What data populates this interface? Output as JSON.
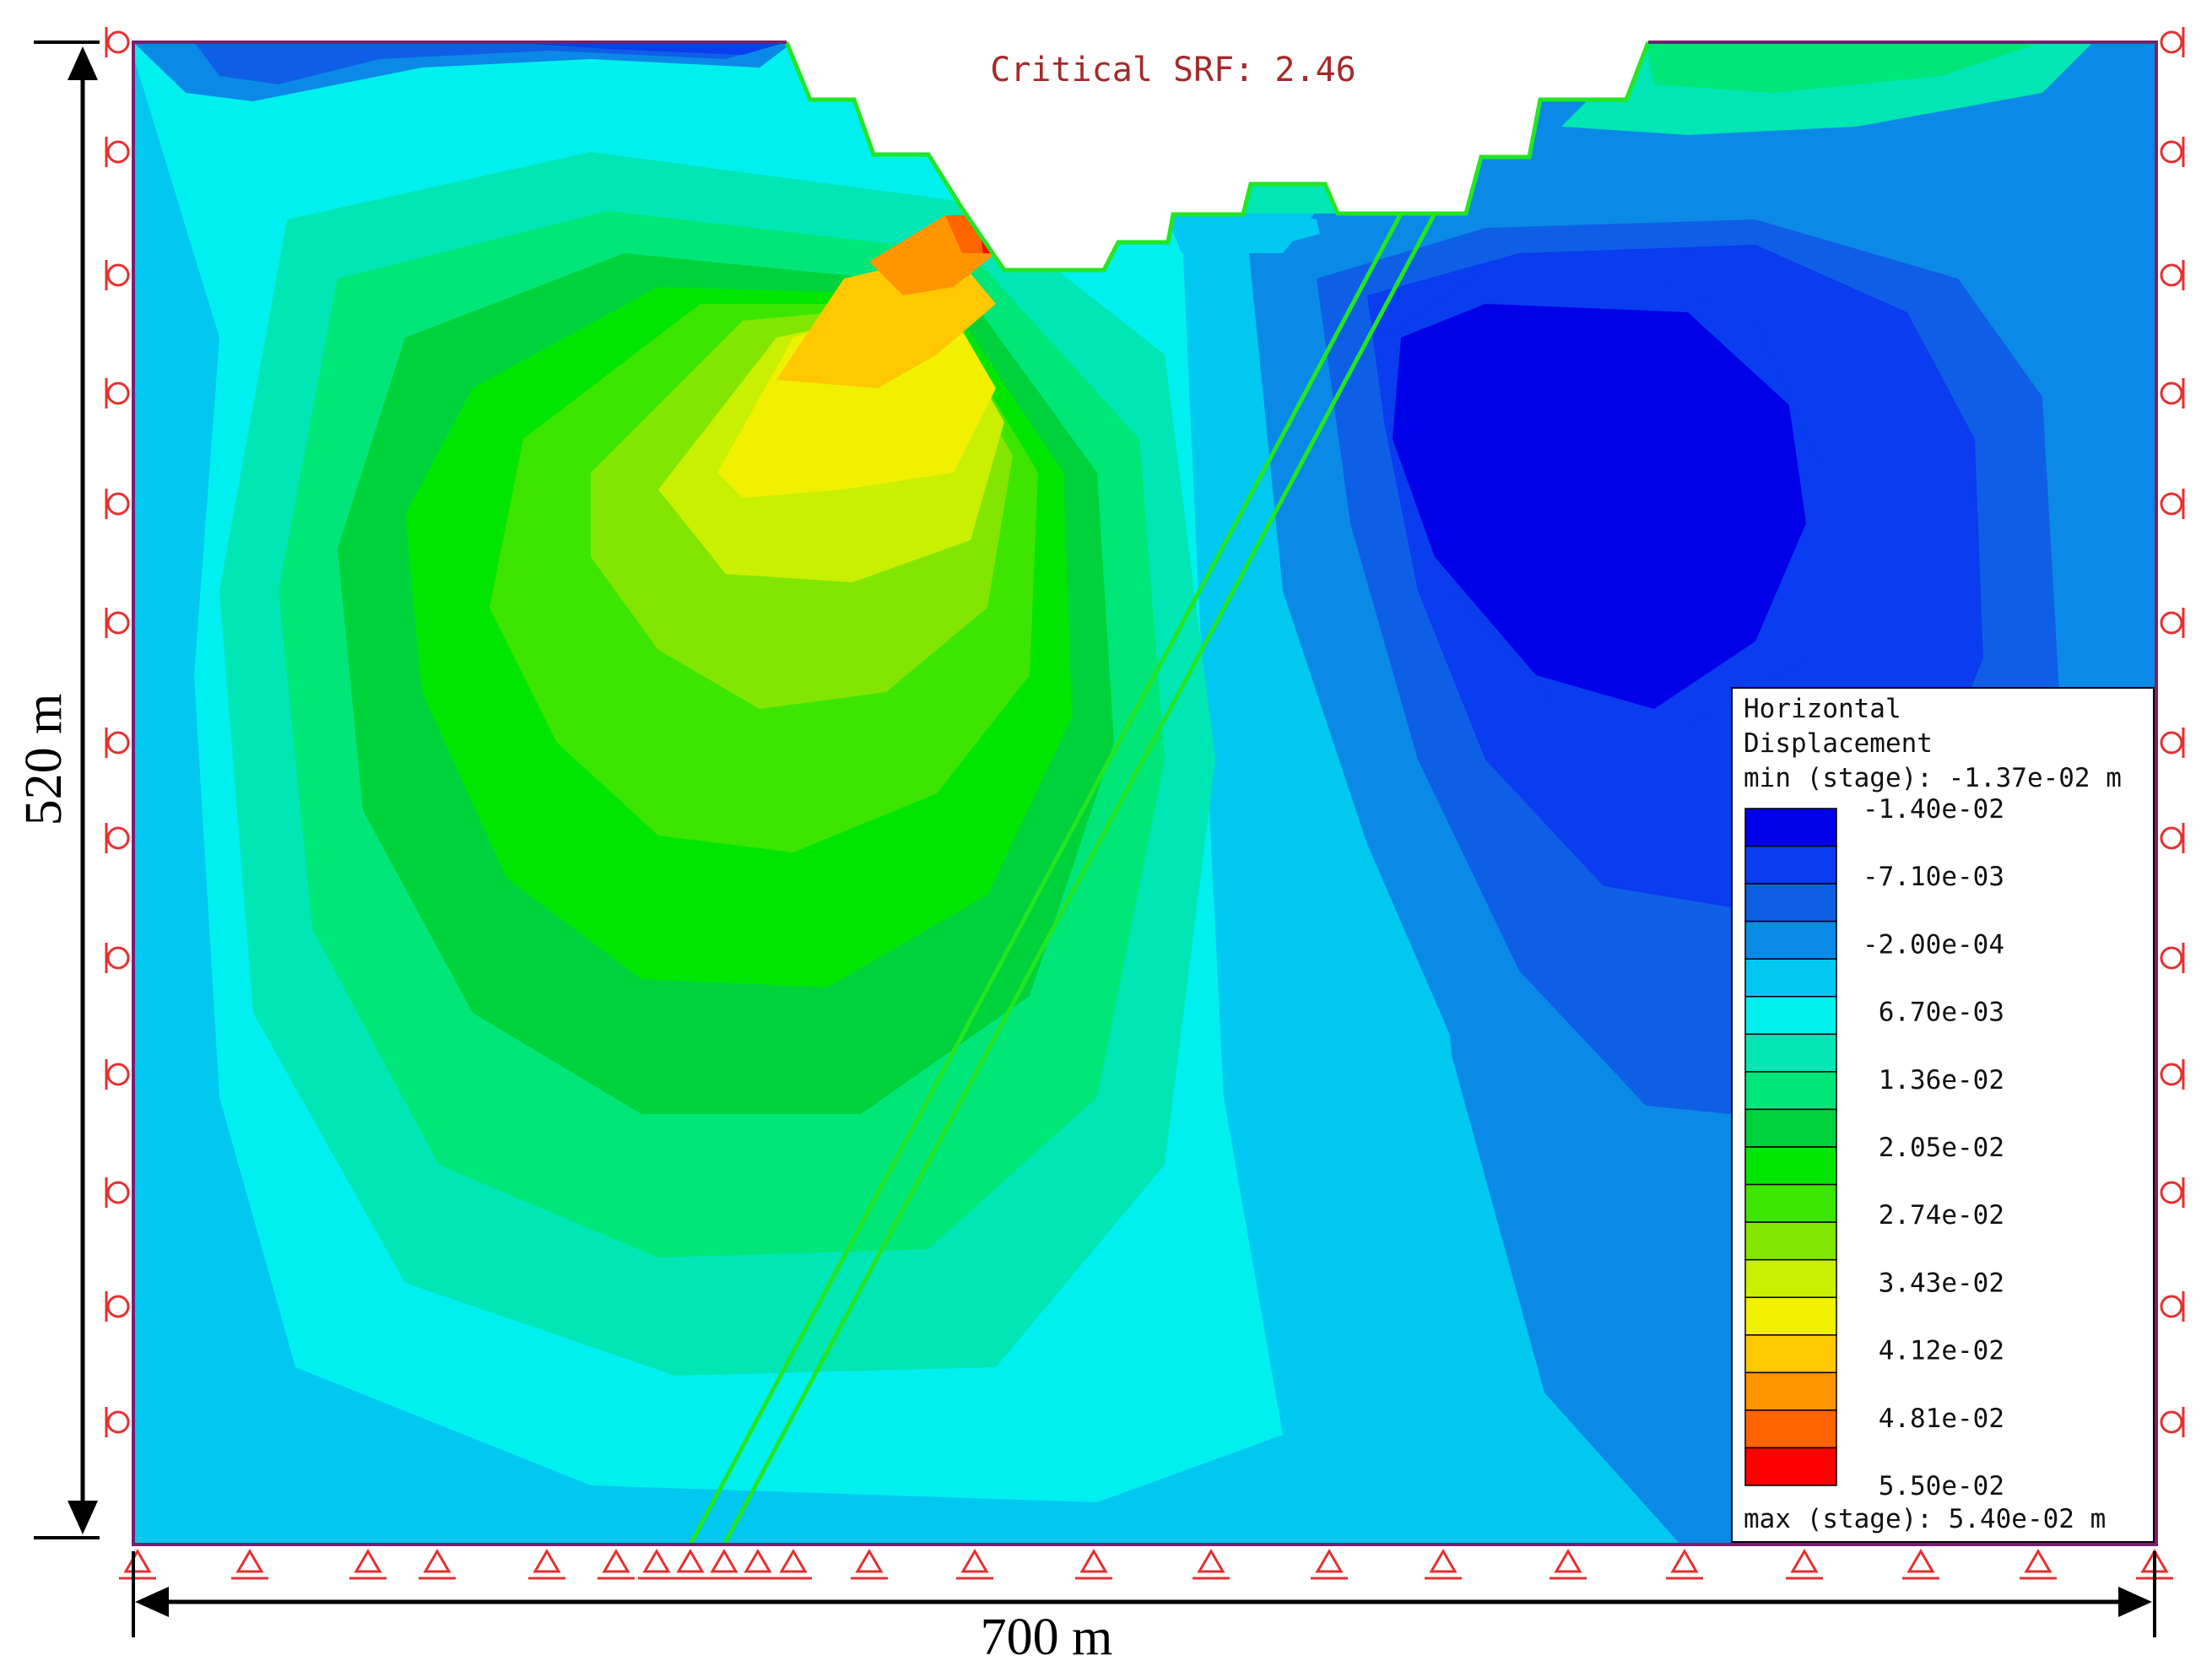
{
  "header": {
    "critical_srf": "Critical SRF: 2.46"
  },
  "dimensions": {
    "height_label": "520 m",
    "width_label": "700 m"
  },
  "legend": {
    "title_line1": "Horizontal",
    "title_line2": "Displacement",
    "min_label": "min (stage): -1.37e-02 m",
    "max_label": "max (stage): 5.40e-02 m",
    "values": [
      "-1.40e-02",
      "-7.10e-03",
      "-2.00e-04",
      "6.70e-03",
      "1.36e-02",
      "2.05e-02",
      "2.74e-02",
      "3.43e-02",
      "4.12e-02",
      "4.81e-02",
      "5.50e-02"
    ],
    "colors": [
      "#0000e8",
      "#0a3cf0",
      "#0f5fe6",
      "#0a8ae6",
      "#00c8f0",
      "#00f0f0",
      "#00e6b4",
      "#00e678",
      "#00d23c",
      "#00e600",
      "#3ce600",
      "#82e600",
      "#c8f000",
      "#f0f000",
      "#ffc800",
      "#ff9600",
      "#ff6400",
      "#ff0000"
    ]
  },
  "colors": {
    "boundary": "#7a1f6e",
    "support": "#e53030",
    "fault": "#22e622",
    "surface": "#22e622"
  }
}
